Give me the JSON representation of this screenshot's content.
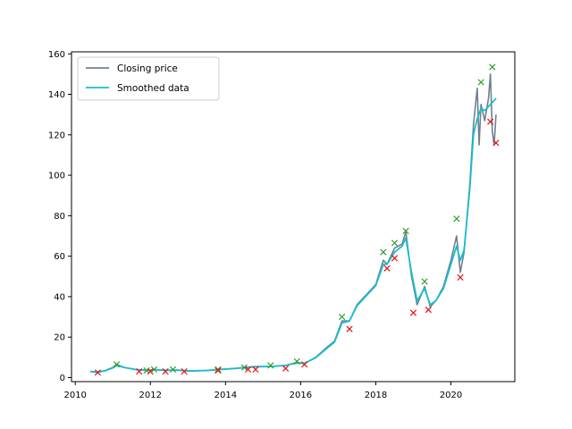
{
  "chart_data": {
    "type": "line",
    "title": "",
    "xlabel": "",
    "ylabel": "",
    "xlim": [
      2009.9,
      2021.7
    ],
    "ylim": [
      -2,
      161
    ],
    "xticks": [
      2010,
      2012,
      2014,
      2016,
      2018,
      2020
    ],
    "yticks": [
      0,
      20,
      40,
      60,
      80,
      100,
      120,
      140,
      160
    ],
    "grid": false,
    "legend_position": "top-left",
    "series": [
      {
        "name": "Closing price",
        "color": "#708090",
        "x": [
          2010.4,
          2010.6,
          2010.8,
          2011.0,
          2011.1,
          2011.3,
          2011.6,
          2011.9,
          2012.1,
          2012.4,
          2012.7,
          2013.0,
          2013.5,
          2013.8,
          2014.2,
          2014.5,
          2014.8,
          2015.2,
          2015.6,
          2015.9,
          2016.1,
          2016.4,
          2016.7,
          2016.9,
          2017.1,
          2017.3,
          2017.5,
          2017.8,
          2018.0,
          2018.2,
          2018.3,
          2018.5,
          2018.7,
          2018.8,
          2018.95,
          2019.1,
          2019.3,
          2019.45,
          2019.6,
          2019.8,
          2020.0,
          2020.15,
          2020.25,
          2020.35,
          2020.5,
          2020.6,
          2020.7,
          2020.75,
          2020.8,
          2020.9,
          2021.0,
          2021.05,
          2021.1,
          2021.15,
          2021.2
        ],
        "y": [
          3,
          2.5,
          3.5,
          5,
          6.5,
          5,
          4,
          3.5,
          4,
          3.5,
          3.8,
          3.2,
          3.5,
          4,
          4.5,
          5,
          5.5,
          5.5,
          6,
          7.5,
          7,
          10,
          15,
          18,
          28,
          28,
          36,
          42,
          46,
          58,
          56,
          64,
          66,
          72,
          50,
          36,
          45,
          35,
          38,
          45,
          58,
          70,
          52,
          62,
          95,
          125,
          143,
          115,
          135,
          127,
          138,
          150,
          122,
          115,
          130
        ]
      },
      {
        "name": "Smoothed data",
        "color": "#17becf",
        "x": [
          2010.4,
          2010.6,
          2010.8,
          2011.0,
          2011.1,
          2011.3,
          2011.6,
          2011.9,
          2012.1,
          2012.4,
          2012.7,
          2013.0,
          2013.5,
          2013.8,
          2014.2,
          2014.5,
          2014.8,
          2015.2,
          2015.6,
          2015.9,
          2016.1,
          2016.4,
          2016.7,
          2016.9,
          2017.1,
          2017.3,
          2017.5,
          2017.8,
          2018.0,
          2018.2,
          2018.3,
          2018.5,
          2018.7,
          2018.8,
          2018.95,
          2019.1,
          2019.3,
          2019.45,
          2019.6,
          2019.8,
          2020.0,
          2020.15,
          2020.25,
          2020.35,
          2020.5,
          2020.6,
          2020.7,
          2020.8,
          2020.9,
          2021.0,
          2021.1,
          2021.2
        ],
        "y": [
          3,
          2.8,
          3.4,
          4.8,
          6,
          5,
          4,
          3.6,
          3.9,
          3.6,
          3.7,
          3.3,
          3.5,
          3.9,
          4.4,
          4.9,
          5.3,
          5.5,
          6,
          7.2,
          7,
          9.8,
          14.5,
          17.5,
          27,
          28,
          35.5,
          41.5,
          45.5,
          56,
          56,
          62,
          65,
          69,
          52,
          38,
          44,
          36,
          38,
          44,
          56,
          65,
          58,
          63,
          93,
          120,
          128,
          133,
          132,
          134,
          136,
          138
        ]
      }
    ],
    "markers": {
      "peaks": {
        "color": "#2ca02c",
        "x": [
          2011.1,
          2011.9,
          2012.1,
          2012.6,
          2013.8,
          2014.5,
          2015.2,
          2015.9,
          2017.1,
          2018.2,
          2018.5,
          2018.8,
          2019.3,
          2020.15,
          2020.8,
          2021.1
        ],
        "y": [
          6.5,
          3.5,
          4,
          4,
          4,
          5,
          6,
          8,
          30,
          62,
          66.5,
          72.5,
          47.5,
          78.5,
          146,
          153.5
        ]
      },
      "troughs": {
        "color": "#e81010",
        "x": [
          2010.6,
          2011.7,
          2012.0,
          2012.4,
          2012.9,
          2013.8,
          2014.6,
          2014.8,
          2015.6,
          2016.1,
          2017.3,
          2018.3,
          2018.5,
          2019.0,
          2019.4,
          2020.25,
          2021.05,
          2021.2
        ],
        "y": [
          2.5,
          3,
          3,
          3,
          3,
          3.5,
          4,
          4,
          4.5,
          6.5,
          24,
          54,
          59,
          32,
          33.5,
          49.5,
          126.5,
          116
        ]
      }
    }
  }
}
